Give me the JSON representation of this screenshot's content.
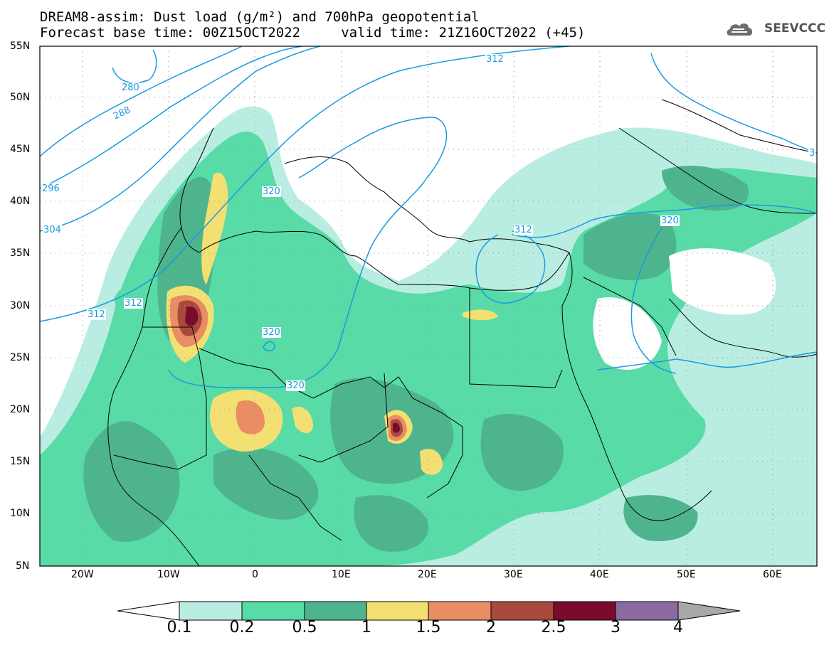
{
  "title": {
    "line1": "DREAM8-assim: Dust load (g/m²) and 700hPa geopotential",
    "line2": "Forecast base time: 00Z15OCT2022     valid time: 21Z16OCT2022 (+45)"
  },
  "logo": {
    "text": "SEEVCCC",
    "icon": "cloud-logo-icon"
  },
  "map": {
    "lat_ticks": [
      "55N",
      "50N",
      "45N",
      "40N",
      "35N",
      "30N",
      "25N",
      "20N",
      "15N",
      "10N",
      "5N"
    ],
    "lon_ticks": [
      "20W",
      "10W",
      "0",
      "10E",
      "20E",
      "30E",
      "40E",
      "50E",
      "60E"
    ],
    "extent": {
      "lon": [
        -25,
        65
      ],
      "lat": [
        5,
        55
      ]
    },
    "contour_labels": [
      "280",
      "288",
      "296",
      "304",
      "312",
      "312",
      "312",
      "312",
      "320",
      "320",
      "320",
      "320",
      "3"
    ]
  },
  "colorbar": {
    "labels": [
      "0.1",
      "0.2",
      "0.5",
      "1",
      "1.5",
      "2",
      "2.5",
      "3",
      "4"
    ],
    "colors": [
      "#ffffff",
      "#b9ede2",
      "#58dba6",
      "#4eb48e",
      "#f3e073",
      "#ea8d63",
      "#a94b3c",
      "#7a0b2d",
      "#8a6aa0",
      "#a8a8a8"
    ]
  }
}
